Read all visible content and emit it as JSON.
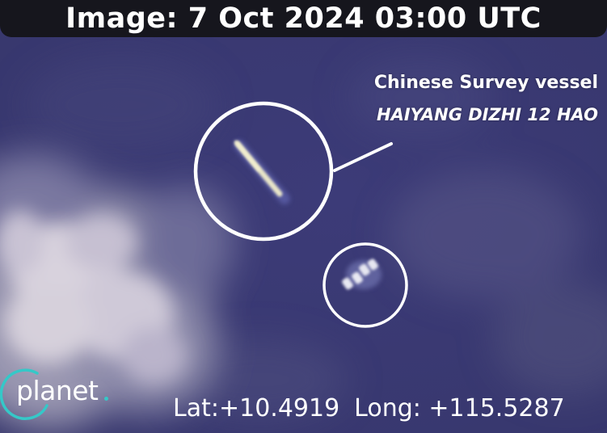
{
  "header": {
    "title": "Image: 7 Oct 2024 03:00 UTC"
  },
  "annotation": {
    "label_line1": "Chinese Survey vessel",
    "label_line2": "HAIYANG DIZHI 12 HAO"
  },
  "location": {
    "lat": "Lat:+10.4919",
    "long": "Long: +115.5287"
  },
  "branding": {
    "logo_text": "planet",
    "logo_accent": "#35c8c8",
    "logo_icon": "planet-ring-icon"
  },
  "colors": {
    "title_bar": "#16161d",
    "highlight_circle": "#ffffff"
  }
}
